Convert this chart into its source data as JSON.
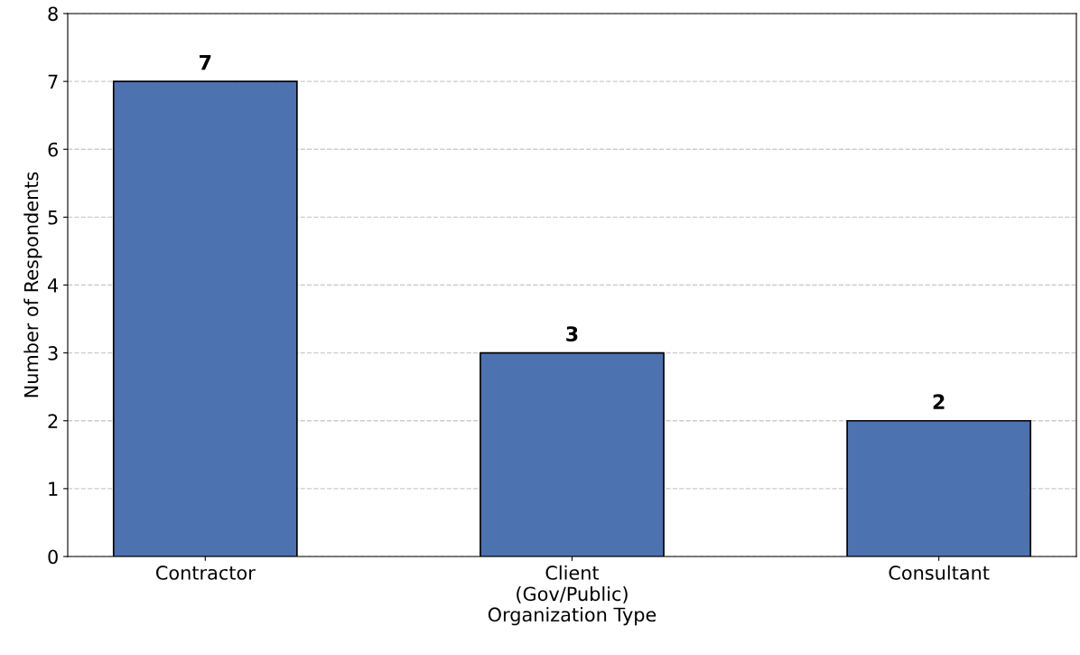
{
  "chart_data": {
    "type": "bar",
    "xlabel": "Organization Type",
    "ylabel": "Number of Respondents",
    "categories": [
      "Contractor",
      "Client\n(Gov/Public)",
      "Consultant"
    ],
    "values": [
      7,
      3,
      2
    ],
    "color": "#4c72b0",
    "ylim": [
      0,
      8
    ],
    "yticks": [
      0,
      1,
      2,
      3,
      4,
      5,
      6,
      7,
      8
    ],
    "grid": "y",
    "data_labels": true
  }
}
